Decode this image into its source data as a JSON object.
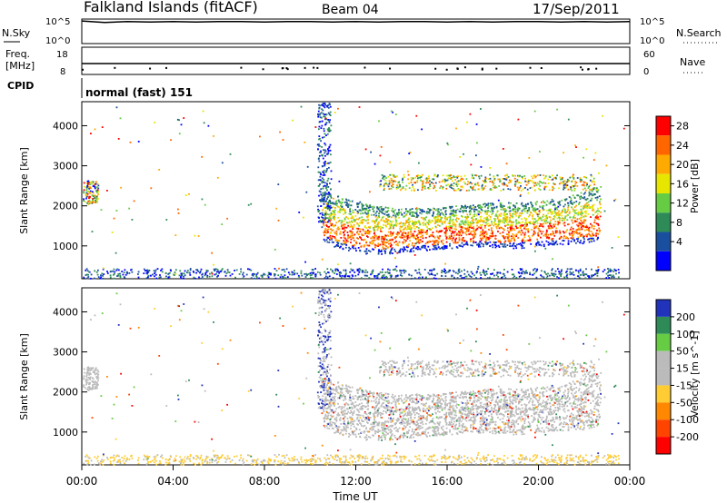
{
  "header": {
    "station": "Falkland Islands (fitACF)",
    "beam": "Beam 04",
    "date": "17/Sep/2011"
  },
  "chart_data": [
    {
      "type": "line",
      "panel": "noise",
      "left_label": "N.Sky",
      "right_label": "N.Search",
      "left_ticks": [
        "10^5",
        "10^0"
      ],
      "right_ticks": [
        "10^5",
        "10^0"
      ],
      "series": [
        {
          "values": [
            4.6,
            4.3,
            4.5,
            4.4,
            4.5,
            4.4,
            4.5,
            4.5,
            4.4,
            4.5,
            4.5,
            4.4,
            4.5,
            4.4,
            4.5,
            4.5,
            4.4,
            4.5,
            4.4,
            4.5,
            4.5,
            4.4,
            4.5,
            4.4,
            4.5
          ]
        }
      ]
    },
    {
      "type": "line",
      "panel": "frequency",
      "left_label_lines": [
        "Freq.",
        "[MHz]"
      ],
      "right_label": "Nave",
      "left_ticks": [
        "18",
        "8"
      ],
      "right_ticks": [
        "60",
        "0"
      ],
      "series": [
        {
          "values": [
            12,
            12,
            12,
            12,
            12,
            12,
            12,
            12,
            12,
            12,
            12,
            12,
            12,
            12,
            12,
            12,
            12,
            12,
            12,
            12,
            12,
            12,
            12,
            12,
            12
          ]
        }
      ]
    },
    {
      "type": "table",
      "panel": "cpid",
      "label": "CPID",
      "value": "normal (fast) 151"
    },
    {
      "type": "heatmap",
      "panel": "power",
      "ylabel": "Slant Range [km]",
      "ylim": [
        180,
        4600
      ],
      "yticks": [
        "1000",
        "2000",
        "3000",
        "4000"
      ],
      "colorbar_label": "Power [dB]",
      "colorbar_ticks": [
        "28",
        "24",
        "20",
        "16",
        "12",
        "8",
        "4"
      ],
      "colorbar_colors": [
        "#ff0000",
        "#ff6600",
        "#ffaa00",
        "#e6e600",
        "#66cc44",
        "#2e8b57",
        "#1a4fa0",
        "#0000ff"
      ],
      "band_lower_km": [
        1150,
        1000,
        850,
        780,
        860,
        900,
        950,
        1000,
        980,
        950,
        1000,
        1050,
        1100
      ],
      "band_upper_km": [
        2400,
        2300,
        2100,
        2000,
        1950,
        1950,
        2000,
        2050,
        2100,
        2100,
        2150,
        2200,
        2500
      ],
      "band_times_h": [
        10.5,
        11,
        12,
        13,
        14,
        15,
        16,
        17,
        18,
        19,
        20,
        21,
        22.7
      ]
    },
    {
      "type": "heatmap",
      "panel": "velocity",
      "ylabel": "Slant Range [km]",
      "ylim": [
        180,
        4600
      ],
      "yticks": [
        "1000",
        "2000",
        "3000",
        "4000"
      ],
      "colorbar_label": "Velocity [m s^-1]",
      "colorbar_ticks": [
        "200",
        "100",
        "50",
        "15",
        "-15",
        "-50",
        "-100",
        "-200"
      ],
      "colorbar_colors": [
        "#2233bb",
        "#2e8b57",
        "#66cc44",
        "#bbbbbb",
        "#bbbbbb",
        "#ffcc33",
        "#ff8800",
        "#ff4400",
        "#ff0000"
      ]
    }
  ],
  "x_axis": {
    "label": "Time UT",
    "ticks": [
      "00:00",
      "04:00",
      "08:00",
      "12:00",
      "16:00",
      "20:00",
      "00:00"
    ]
  }
}
